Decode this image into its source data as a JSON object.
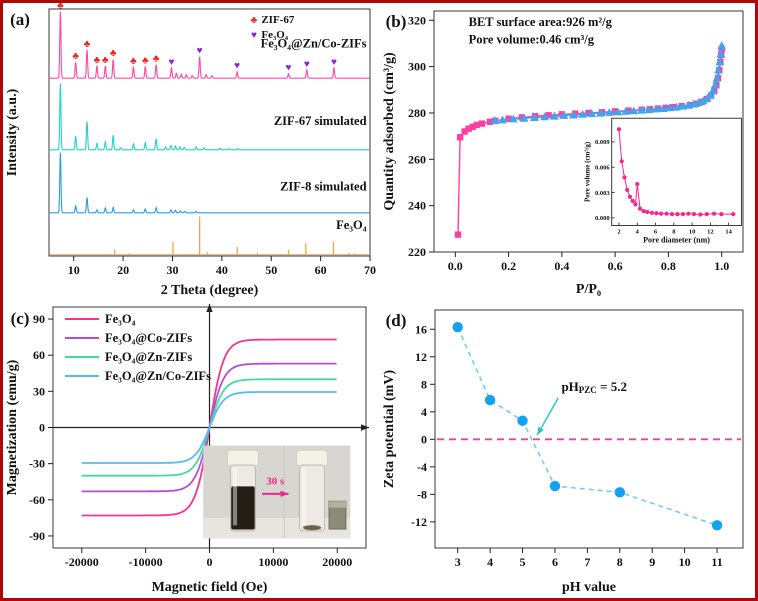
{
  "figure": {
    "border_color": "#b00707",
    "background": "#ffffff"
  },
  "chart_data": [
    {
      "id": "a",
      "type": "xrd",
      "panel_label": "(a)",
      "xlabel": "2 Theta (degree)",
      "ylabel": "Intensity (a.u.)",
      "xlim": [
        5,
        70
      ],
      "xticks": [
        10,
        20,
        30,
        40,
        50,
        60,
        70
      ],
      "legend": [
        {
          "glyph": "♣",
          "color": "#f31f1f",
          "label": "ZIF-67"
        },
        {
          "glyph": "♥",
          "color": "#8b22e2",
          "label": "Fe₃O₄"
        }
      ],
      "marker_sets": [
        {
          "glyph": "♣",
          "color": "#f31f1f",
          "positions": [
            7.3,
            10.4,
            12.7,
            14.7,
            16.4,
            18.0,
            22.1,
            24.5,
            26.7
          ]
        },
        {
          "glyph": "♥",
          "color": "#8b22e2",
          "positions": [
            29.8,
            35.5,
            43.1,
            53.5,
            57.2,
            62.7
          ]
        }
      ],
      "series": [
        {
          "name": "Fe₃O₄@Zn/Co-ZIFs",
          "color": "#ff47a3",
          "baseline": 0.72,
          "label_y": 0.845,
          "peaks": [
            [
              7.3,
              0.27
            ],
            [
              10.4,
              0.065
            ],
            [
              12.7,
              0.115
            ],
            [
              14.7,
              0.05
            ],
            [
              16.4,
              0.05
            ],
            [
              18.0,
              0.077
            ],
            [
              22.1,
              0.045
            ],
            [
              24.5,
              0.048
            ],
            [
              26.7,
              0.055
            ],
            [
              29.8,
              0.042
            ],
            [
              30.8,
              0.02
            ],
            [
              31.8,
              0.016
            ],
            [
              32.8,
              0.014
            ],
            [
              34.0,
              0.01
            ],
            [
              35.5,
              0.088
            ],
            [
              36.8,
              0.014
            ],
            [
              38.0,
              0.01
            ],
            [
              43.1,
              0.026
            ],
            [
              53.5,
              0.018
            ],
            [
              57.2,
              0.034
            ],
            [
              62.7,
              0.042
            ]
          ]
        },
        {
          "name": "ZIF-67 simulated",
          "color": "#22d3c9",
          "baseline": 0.43,
          "label_y": 0.53,
          "peaks": [
            [
              7.3,
              0.27
            ],
            [
              10.4,
              0.055
            ],
            [
              12.7,
              0.115
            ],
            [
              14.7,
              0.026
            ],
            [
              16.4,
              0.032
            ],
            [
              18.0,
              0.06
            ],
            [
              19.5,
              0.008
            ],
            [
              22.1,
              0.025
            ],
            [
              24.5,
              0.03
            ],
            [
              26.7,
              0.045
            ],
            [
              28.6,
              0.012
            ],
            [
              29.7,
              0.018
            ],
            [
              30.6,
              0.016
            ],
            [
              31.5,
              0.012
            ],
            [
              32.4,
              0.01
            ],
            [
              34.8,
              0.012
            ],
            [
              36.4,
              0.008
            ],
            [
              39.6,
              0.006
            ],
            [
              41.5,
              0.005
            ],
            [
              43.3,
              0.005
            ]
          ]
        },
        {
          "name": "ZIF-8 simulated",
          "color": "#2b9ce6",
          "baseline": 0.175,
          "label_y": 0.265,
          "peaks": [
            [
              7.3,
              0.245
            ],
            [
              10.4,
              0.028
            ],
            [
              12.7,
              0.062
            ],
            [
              14.7,
              0.012
            ],
            [
              16.4,
              0.02
            ],
            [
              18.0,
              0.022
            ],
            [
              22.1,
              0.012
            ],
            [
              24.5,
              0.016
            ],
            [
              26.7,
              0.02
            ],
            [
              29.7,
              0.012
            ],
            [
              30.6,
              0.01
            ],
            [
              31.6,
              0.008
            ],
            [
              32.5,
              0.006
            ],
            [
              34.8,
              0.005
            ]
          ]
        },
        {
          "name": "Fe₃O₄",
          "color": "#f9a04a",
          "baseline": 0.005,
          "label_y": 0.11,
          "sticks": [
            [
              18.3,
              0.022
            ],
            [
              21.2,
              0.006
            ],
            [
              30.1,
              0.052
            ],
            [
              35.5,
              0.155
            ],
            [
              37.1,
              0.012
            ],
            [
              43.1,
              0.032
            ],
            [
              47.2,
              0.008
            ],
            [
              53.5,
              0.02
            ],
            [
              57.0,
              0.047
            ],
            [
              62.6,
              0.052
            ],
            [
              65.8,
              0.008
            ],
            [
              66.9,
              0.006
            ]
          ]
        }
      ]
    },
    {
      "id": "b",
      "type": "isotherm",
      "panel_label": "(b)",
      "xlabel": "P/P₀",
      "ylabel": "Quantity adsorbed (cm³/g)",
      "xlim": [
        -0.08,
        1.08
      ],
      "ylim": [
        220,
        324
      ],
      "xticks": [
        0.0,
        0.2,
        0.4,
        0.6,
        0.8,
        1.0
      ],
      "yticks": [
        220,
        240,
        260,
        280,
        300,
        320
      ],
      "annotations": [
        "BET surface area:926 m²/g",
        "Pore volume:0.46 cm³/g"
      ],
      "series": [
        {
          "name": "adsorption",
          "color": "#ff3fa2",
          "marker": "square",
          "points": [
            [
              0.01,
              227.5
            ],
            [
              0.018,
              269.5
            ],
            [
              0.035,
              272.0
            ],
            [
              0.05,
              273.2
            ],
            [
              0.065,
              274.0
            ],
            [
              0.08,
              274.8
            ],
            [
              0.1,
              275.4
            ],
            [
              0.13,
              276.2
            ],
            [
              0.15,
              276.6
            ],
            [
              0.2,
              277.5
            ],
            [
              0.25,
              278.1
            ],
            [
              0.3,
              278.6
            ],
            [
              0.35,
              279.0
            ],
            [
              0.4,
              279.4
            ],
            [
              0.45,
              279.7
            ],
            [
              0.5,
              280.0
            ],
            [
              0.55,
              280.3
            ],
            [
              0.6,
              280.7
            ],
            [
              0.65,
              281.0
            ],
            [
              0.7,
              281.4
            ],
            [
              0.73,
              281.6
            ],
            [
              0.76,
              281.9
            ],
            [
              0.79,
              282.2
            ],
            [
              0.82,
              282.5
            ],
            [
              0.85,
              282.9
            ],
            [
              0.88,
              283.4
            ],
            [
              0.905,
              284.0
            ],
            [
              0.925,
              284.8
            ],
            [
              0.945,
              286.0
            ],
            [
              0.96,
              287.5
            ],
            [
              0.972,
              289.5
            ],
            [
              0.98,
              292.0
            ],
            [
              0.986,
              295.0
            ],
            [
              0.991,
              298.5
            ],
            [
              0.995,
              302.0
            ],
            [
              0.998,
              305.0
            ],
            [
              1.0,
              307.5
            ]
          ]
        },
        {
          "name": "desorption",
          "color": "#3fa5ee",
          "marker": "triangle",
          "points": [
            [
              1.0,
              309.0
            ],
            [
              0.997,
              305.5
            ],
            [
              0.993,
              302.0
            ],
            [
              0.988,
              298.5
            ],
            [
              0.982,
              295.0
            ],
            [
              0.975,
              292.0
            ],
            [
              0.967,
              289.5
            ],
            [
              0.957,
              287.8
            ],
            [
              0.945,
              286.3
            ],
            [
              0.93,
              285.2
            ],
            [
              0.913,
              284.4
            ],
            [
              0.895,
              283.8
            ],
            [
              0.875,
              283.3
            ],
            [
              0.853,
              282.9
            ],
            [
              0.83,
              282.5
            ],
            [
              0.805,
              282.2
            ],
            [
              0.78,
              281.9
            ],
            [
              0.755,
              281.7
            ],
            [
              0.728,
              281.4
            ],
            [
              0.7,
              281.2
            ],
            [
              0.67,
              280.9
            ],
            [
              0.64,
              280.7
            ],
            [
              0.61,
              280.4
            ],
            [
              0.578,
              280.2
            ],
            [
              0.545,
              279.9
            ],
            [
              0.512,
              279.7
            ],
            [
              0.478,
              279.4
            ],
            [
              0.443,
              279.1
            ],
            [
              0.408,
              278.9
            ],
            [
              0.372,
              278.6
            ],
            [
              0.335,
              278.3
            ],
            [
              0.297,
              278.0
            ],
            [
              0.258,
              277.7
            ],
            [
              0.218,
              277.4
            ],
            [
              0.177,
              277.0
            ],
            [
              0.148,
              276.8
            ]
          ]
        }
      ],
      "inset": {
        "xlabel": "Pore diameter (nm)",
        "ylabel": "Pore volume (cm³/g)",
        "xlim": [
          1.2,
          15.4
        ],
        "ylim": [
          -0.0009,
          0.0118
        ],
        "xticks": [
          2,
          4,
          6,
          8,
          10,
          12,
          14
        ],
        "yticks": [
          0,
          0.003,
          0.006,
          0.009
        ],
        "color": "#f7258c",
        "points": [
          [
            2.0,
            0.0105
          ],
          [
            2.3,
            0.0067
          ],
          [
            2.6,
            0.0048
          ],
          [
            2.9,
            0.0033
          ],
          [
            3.2,
            0.0025
          ],
          [
            3.5,
            0.002
          ],
          [
            3.8,
            0.0016
          ],
          [
            4.0,
            0.004
          ],
          [
            4.3,
            0.0011
          ],
          [
            4.7,
            0.0008
          ],
          [
            5.1,
            0.0007
          ],
          [
            5.6,
            0.0006
          ],
          [
            6.1,
            0.00055
          ],
          [
            6.6,
            0.0005
          ],
          [
            7.2,
            0.0005
          ],
          [
            7.8,
            0.00045
          ],
          [
            8.4,
            0.00045
          ],
          [
            9.0,
            0.00045
          ],
          [
            9.6,
            0.0005
          ],
          [
            10.2,
            0.00045
          ],
          [
            10.9,
            0.0004
          ],
          [
            11.6,
            0.00045
          ],
          [
            12.4,
            0.0005
          ],
          [
            13.2,
            0.00045
          ],
          [
            14.5,
            0.00045
          ]
        ]
      }
    },
    {
      "id": "c",
      "type": "hysteresis",
      "panel_label": "(c)",
      "xlabel": "Magnetic field (Oe)",
      "ylabel": "Magnetization (emu/g)",
      "xlim": [
        -24500,
        24500
      ],
      "ylim": [
        -100,
        100
      ],
      "xticks": [
        -20000,
        -10000,
        0,
        10000,
        20000
      ],
      "yticks": [
        -90,
        -60,
        -30,
        0,
        30,
        60,
        90
      ],
      "slope": 2200,
      "series": [
        {
          "name": "Fe₃O₄",
          "color": "#f2368c",
          "ms": 73
        },
        {
          "name": "Fe₃O₄@Co-ZIFs",
          "color": "#b24fd8",
          "ms": 53
        },
        {
          "name": "Fe₃O₄@Zn-ZIFs",
          "color": "#41dc9c",
          "ms": 40
        },
        {
          "name": "Fe₃O₄@Zn/Co-ZIFs",
          "color": "#58baf2",
          "ms": 29.5
        }
      ],
      "inset_photo": {
        "label": "30 s",
        "label_color": "#f0268c"
      }
    },
    {
      "id": "d",
      "type": "zeta",
      "panel_label": "(d)",
      "xlabel": "pH value",
      "ylabel": "Zeta potential (mV)",
      "xlim": [
        2.3,
        11.8
      ],
      "ylim": [
        -15.8,
        18.8
      ],
      "xticks": [
        3,
        4,
        5,
        6,
        7,
        8,
        9,
        10,
        11
      ],
      "yticks": [
        -12,
        -8,
        -4,
        0,
        4,
        8,
        12,
        16
      ],
      "points": [
        [
          3,
          16.3
        ],
        [
          4,
          5.7
        ],
        [
          5,
          2.7
        ],
        [
          6,
          -6.8
        ],
        [
          8,
          -7.7
        ],
        [
          11,
          -12.5
        ]
      ],
      "point_color": "#12a2f0",
      "line_color": "#74ccf6",
      "zero_line_color": "#f43fa0",
      "arrow_color": "#2bc8c8",
      "annotation": {
        "pre": "pH",
        "sub": "PZC",
        "post": " = 5.2"
      }
    }
  ]
}
